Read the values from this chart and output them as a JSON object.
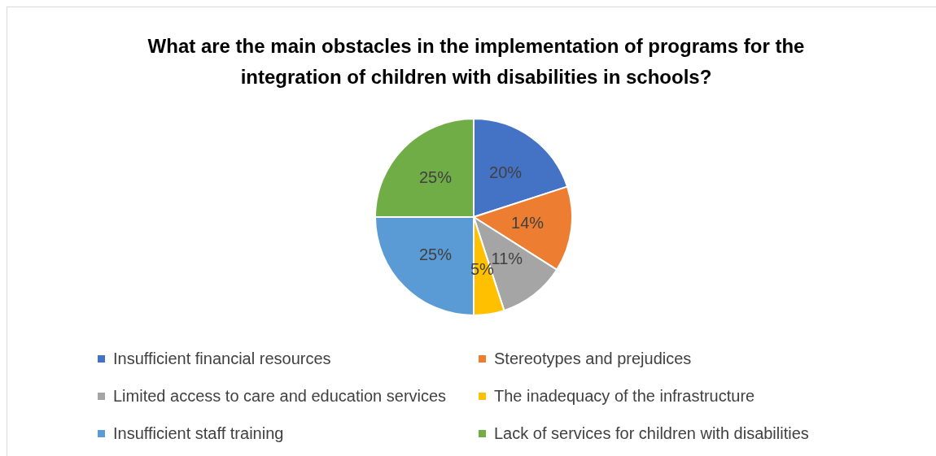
{
  "chart_data": {
    "type": "pie",
    "title": "What are the main obstacles in the implementation of programs for the integration of children with disabilities in schools?",
    "categories": [
      "Insufficient financial resources",
      "Stereotypes and prejudices",
      "Limited access to care and education services",
      "The inadequacy of the infrastructure",
      "Insufficient staff training",
      "Lack of services for children with disabilities"
    ],
    "values": [
      20,
      14,
      11,
      5,
      25,
      25
    ],
    "value_labels": [
      "20%",
      "14%",
      "11%",
      "5%",
      "25%",
      "25%"
    ],
    "colors": [
      "#4472c4",
      "#ed7d31",
      "#a5a5a5",
      "#ffc000",
      "#5b9bd5",
      "#70ad47"
    ],
    "legend": "bottom"
  }
}
